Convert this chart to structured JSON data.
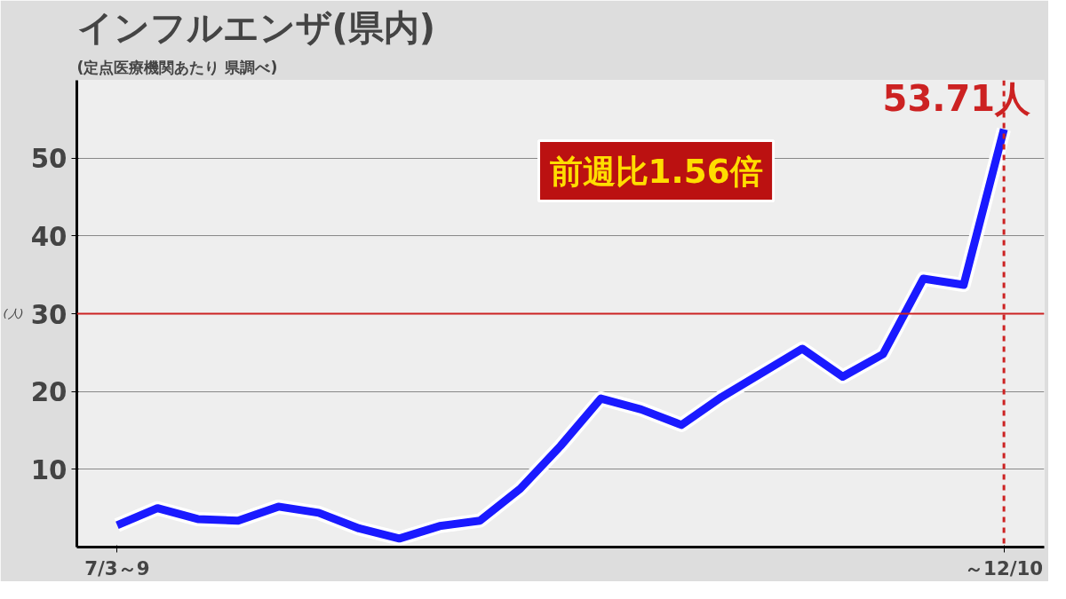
{
  "chart_data": {
    "type": "line",
    "title": "インフルエンザ(県内)",
    "subtitle": "(定点医療機関あたり 県調べ)",
    "ylabel": "(人)",
    "categories": [
      "7/3～9",
      null,
      null,
      null,
      null,
      null,
      null,
      null,
      null,
      null,
      null,
      null,
      null,
      null,
      null,
      null,
      null,
      null,
      null,
      null,
      null,
      null,
      "～12/10"
    ],
    "series": [
      {
        "color": "#1a1aff",
        "values": [
          2.8,
          5.0,
          3.6,
          3.4,
          5.2,
          4.4,
          2.4,
          1.1,
          2.7,
          3.4,
          7.5,
          13.0,
          19.1,
          17.7,
          15.7,
          19.3,
          22.4,
          25.5,
          21.9,
          24.8,
          34.5,
          33.7,
          53.71
        ]
      }
    ],
    "ylim": [
      0,
      60
    ],
    "yticks": [
      10,
      20,
      30,
      40,
      50
    ],
    "grid": "y",
    "marker": "none",
    "line_style": "solid",
    "ref_lines": [
      {
        "axis": "y",
        "value": 30,
        "color": "#cc2222",
        "line_style": "solid"
      },
      {
        "axis": "x",
        "value": "～12/10",
        "color": "#cc2222",
        "line_style": "dashed"
      }
    ],
    "annotations": [
      {
        "text": "53.71人",
        "x": "～12/10",
        "y": 53.71
      },
      "前週比1.56倍"
    ]
  }
}
